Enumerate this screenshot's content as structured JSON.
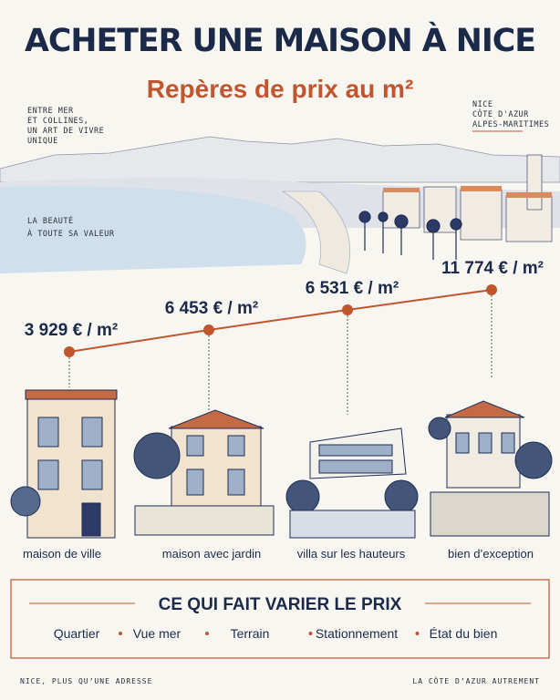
{
  "header": {
    "title": "ACHETER UNE MAISON À NICE",
    "subtitle": "Repères de prix au m²"
  },
  "tagline_left": [
    "ENTRE MER",
    "ET COLLINES,",
    "UN ART DE VIVRE",
    "UNIQUE"
  ],
  "tagline_right": [
    "NICE",
    "CÔTE D'AZUR",
    "ALPES-MARITIMES"
  ],
  "beauty": [
    "LA BEAUTÉ",
    "À TOUTE SA VALEUR"
  ],
  "properties": [
    {
      "price": "3 929 € / m²",
      "label": "maison de ville"
    },
    {
      "price": "6 453 € / m²",
      "label": "maison avec jardin"
    },
    {
      "price": "6 531 € / m²",
      "label": "villa sur les hauteurs"
    },
    {
      "price": "11 774 € / m²",
      "label": "bien d’exception"
    }
  ],
  "factors": {
    "title": "CE QUI FAIT VARIER LE PRIX",
    "items": [
      "Quartier",
      "Vue mer",
      "Terrain",
      "Stationnement",
      "État du bien"
    ]
  },
  "footer": {
    "left": "NICE, PLUS QU’UNE ADRESSE",
    "right": "LA CÔTE D’AZUR AUTREMENT"
  }
}
